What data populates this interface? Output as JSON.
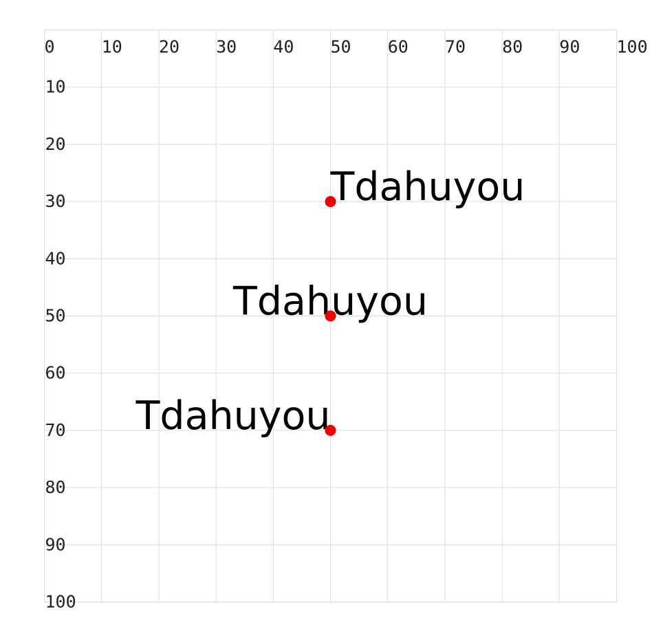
{
  "grid": {
    "x_range": [
      0,
      100
    ],
    "y_range": [
      0,
      100
    ],
    "step": 10,
    "x_ticks": [
      "0",
      "10",
      "20",
      "30",
      "40",
      "50",
      "60",
      "70",
      "80",
      "90",
      "100"
    ],
    "y_ticks": [
      "10",
      "20",
      "30",
      "40",
      "50",
      "60",
      "70",
      "80",
      "90",
      "100"
    ],
    "line_color": "#dcdcdc"
  },
  "anchor_color": "#ee0000",
  "samples": [
    {
      "text": "Tdahuyou",
      "x": 50,
      "y": 30,
      "anchor": "start"
    },
    {
      "text": "Tdahuyou",
      "x": 50,
      "y": 50,
      "anchor": "middle"
    },
    {
      "text": "Tdahuyou",
      "x": 50,
      "y": 70,
      "anchor": "end"
    }
  ]
}
